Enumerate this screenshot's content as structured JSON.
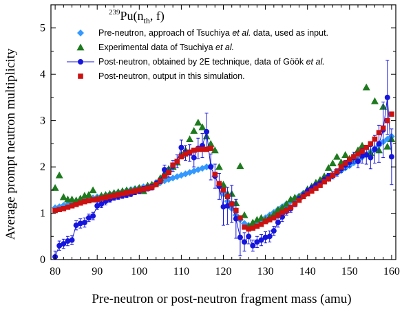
{
  "chart_data": {
    "type": "scatter",
    "title": "²³⁹Pu(n_th, f)",
    "title_parts": {
      "sup": "239",
      "main": "Pu(n",
      "sub": "th",
      "tail": ", f)"
    },
    "xlabel": "Pre-neutron or post-neutron fragment mass (amu)",
    "ylabel": "Average prompt neutron multiplicity",
    "xlim": [
      79,
      161
    ],
    "ylim": [
      0,
      5.5
    ],
    "xticks": [
      80,
      90,
      100,
      110,
      120,
      130,
      140,
      150,
      160
    ],
    "yticks": [
      0,
      1,
      2,
      3,
      4,
      5
    ],
    "grid": false,
    "legend_position": "top-right",
    "series": [
      {
        "name": "Pre-neutron, approach of Tsuchiya et al. data, used as input.",
        "legend_label_parts": [
          "Pre-neutron, approach of Tsuchiya ",
          "et al.",
          " data, used as input."
        ],
        "marker": "diamond",
        "color": "#3399ff",
        "x": [
          80,
          81,
          82,
          83,
          84,
          85,
          86,
          87,
          88,
          89,
          90,
          91,
          92,
          93,
          94,
          95,
          96,
          97,
          98,
          99,
          100,
          101,
          102,
          103,
          104,
          105,
          106,
          107,
          108,
          109,
          110,
          111,
          112,
          113,
          114,
          115,
          116,
          117,
          118,
          119,
          120,
          121,
          122,
          123,
          124,
          125,
          126,
          127,
          128,
          129,
          130,
          131,
          132,
          133,
          134,
          135,
          136,
          137,
          138,
          139,
          140,
          141,
          142,
          143,
          144,
          145,
          146,
          147,
          148,
          149,
          150,
          151,
          152,
          153,
          154,
          155,
          156,
          157,
          158,
          159,
          160
        ],
        "y": [
          1.12,
          1.14,
          1.17,
          1.19,
          1.22,
          1.24,
          1.27,
          1.29,
          1.31,
          1.33,
          1.35,
          1.37,
          1.39,
          1.41,
          1.43,
          1.45,
          1.47,
          1.49,
          1.51,
          1.53,
          1.55,
          1.57,
          1.59,
          1.61,
          1.63,
          1.66,
          1.7,
          1.73,
          1.76,
          1.79,
          1.82,
          1.85,
          1.88,
          1.91,
          1.94,
          1.97,
          2.0,
          2.02,
          1.8,
          1.6,
          1.42,
          1.26,
          1.1,
          0.96,
          0.86,
          0.78,
          0.74,
          0.74,
          0.78,
          0.84,
          0.9,
          0.96,
          1.02,
          1.08,
          1.14,
          1.2,
          1.26,
          1.32,
          1.37,
          1.43,
          1.48,
          1.53,
          1.59,
          1.64,
          1.7,
          1.75,
          1.81,
          1.86,
          1.92,
          1.98,
          2.03,
          2.09,
          2.15,
          2.21,
          2.27,
          2.33,
          2.4,
          2.47,
          2.54,
          2.6,
          2.66
        ]
      },
      {
        "name": "Experimental data of Tsuchiya et al.",
        "legend_label_parts": [
          "Experimental data of Tsuchiya ",
          "et al.",
          ""
        ],
        "marker": "triangle",
        "color": "#1e7a1e",
        "x": [
          80,
          81,
          82,
          83,
          84,
          85,
          86,
          87,
          88,
          89,
          90,
          91,
          92,
          93,
          94,
          95,
          96,
          97,
          98,
          99,
          100,
          101,
          102,
          103,
          104,
          105,
          106,
          107,
          108,
          109,
          110,
          111,
          112,
          113,
          114,
          115,
          116,
          117,
          118,
          119,
          120,
          121,
          122,
          123,
          124,
          125,
          126,
          127,
          128,
          129,
          130,
          131,
          132,
          133,
          134,
          135,
          136,
          137,
          138,
          139,
          140,
          141,
          142,
          143,
          144,
          145,
          146,
          147,
          148,
          149,
          150,
          151,
          152,
          153,
          154,
          155,
          156,
          157,
          158,
          159,
          160
        ],
        "y": [
          1.55,
          1.82,
          1.35,
          1.3,
          1.3,
          1.28,
          1.32,
          1.38,
          1.4,
          1.5,
          1.32,
          1.38,
          1.4,
          1.42,
          1.44,
          1.46,
          1.48,
          1.5,
          1.5,
          1.52,
          1.55,
          1.48,
          1.6,
          1.62,
          1.66,
          1.76,
          1.86,
          1.96,
          2.0,
          2.1,
          2.26,
          2.36,
          2.6,
          2.78,
          2.96,
          2.86,
          2.66,
          2.5,
          2.36,
          2.0,
          1.62,
          1.42,
          1.42,
          1.22,
          2.02,
          0.96,
          0.72,
          0.8,
          0.86,
          0.9,
          0.86,
          0.92,
          0.98,
          1.08,
          1.12,
          1.2,
          1.3,
          1.34,
          1.36,
          1.42,
          1.52,
          1.58,
          1.66,
          1.72,
          1.8,
          1.98,
          2.08,
          2.22,
          2.1,
          2.26,
          2.18,
          2.24,
          2.36,
          2.46,
          3.72,
          2.3,
          3.42,
          2.36,
          3.3,
          2.44,
          2.6
        ]
      },
      {
        "name": "Post-neutron, obtained by 2E technique, data of Göök et al.",
        "legend_label_parts": [
          "Post-neutron, obtained by 2E technique, data of Göök ",
          "et al.",
          ""
        ],
        "marker": "circle",
        "color": "#1515dd",
        "x": [
          80,
          81,
          82,
          83,
          84,
          85,
          86,
          87,
          88,
          89,
          90,
          91,
          92,
          93,
          94,
          95,
          96,
          97,
          98,
          99,
          100,
          101,
          102,
          103,
          104,
          105,
          106,
          107,
          108,
          109,
          110,
          111,
          112,
          113,
          114,
          115,
          116,
          117,
          118,
          119,
          120,
          121,
          122,
          123,
          124,
          125,
          126,
          127,
          128,
          129,
          130,
          131,
          132,
          133,
          134,
          135,
          136,
          137,
          138,
          139,
          140,
          141,
          142,
          143,
          144,
          145,
          146,
          147,
          148,
          149,
          150,
          151,
          152,
          153,
          154,
          155,
          156,
          157,
          158,
          159,
          160
        ],
        "y": [
          0.06,
          0.3,
          0.34,
          0.4,
          0.42,
          0.74,
          0.78,
          0.8,
          0.9,
          0.94,
          1.16,
          1.2,
          1.26,
          1.3,
          1.34,
          1.36,
          1.38,
          1.4,
          1.42,
          1.46,
          1.48,
          1.52,
          1.54,
          1.56,
          1.64,
          1.7,
          1.94,
          1.88,
          2.02,
          2.12,
          2.42,
          2.3,
          2.3,
          2.2,
          2.4,
          2.46,
          2.76,
          2.0,
          1.8,
          1.58,
          1.14,
          1.16,
          1.2,
          0.88,
          0.48,
          0.38,
          0.5,
          0.3,
          0.38,
          0.42,
          0.48,
          0.5,
          0.62,
          0.8,
          0.92,
          1.04,
          1.1,
          1.2,
          1.3,
          1.38,
          1.48,
          1.54,
          1.6,
          1.64,
          1.72,
          1.8,
          1.82,
          1.88,
          1.96,
          2.04,
          2.1,
          2.2,
          2.12,
          2.24,
          2.26,
          2.2,
          2.38,
          2.5,
          2.8,
          3.5,
          2.22
        ],
        "yerr": [
          0.12,
          0.1,
          0.1,
          0.1,
          0.1,
          0.1,
          0.1,
          0.1,
          0.08,
          0.08,
          0.08,
          0.08,
          0.08,
          0.06,
          0.06,
          0.06,
          0.06,
          0.06,
          0.06,
          0.06,
          0.06,
          0.06,
          0.06,
          0.06,
          0.06,
          0.06,
          0.1,
          0.1,
          0.12,
          0.14,
          0.16,
          0.16,
          0.18,
          0.2,
          0.22,
          0.26,
          0.4,
          0.28,
          0.26,
          0.28,
          0.4,
          0.4,
          0.4,
          0.42,
          0.4,
          0.2,
          0.16,
          0.12,
          0.12,
          0.12,
          0.12,
          0.12,
          0.1,
          0.1,
          0.1,
          0.08,
          0.08,
          0.06,
          0.06,
          0.06,
          0.06,
          0.06,
          0.06,
          0.06,
          0.06,
          0.06,
          0.08,
          0.08,
          0.08,
          0.1,
          0.1,
          0.12,
          0.14,
          0.16,
          0.2,
          0.24,
          0.3,
          0.4,
          0.6,
          0.8,
          0.6
        ]
      },
      {
        "name": "Post-neutron, output in this simulation.",
        "legend_label_parts": [
          "Post-neutron, output in this simulation.",
          "",
          ""
        ],
        "marker": "square",
        "color": "#cc1111",
        "x": [
          80,
          81,
          82,
          83,
          84,
          85,
          86,
          87,
          88,
          89,
          90,
          91,
          92,
          93,
          94,
          95,
          96,
          97,
          98,
          99,
          100,
          101,
          102,
          103,
          104,
          105,
          106,
          107,
          108,
          109,
          110,
          111,
          112,
          113,
          114,
          115,
          116,
          117,
          118,
          119,
          120,
          121,
          122,
          123,
          124,
          125,
          126,
          127,
          128,
          129,
          130,
          131,
          132,
          133,
          134,
          135,
          136,
          137,
          138,
          139,
          140,
          141,
          142,
          143,
          144,
          145,
          146,
          147,
          148,
          149,
          150,
          151,
          152,
          153,
          154,
          155,
          156,
          157,
          158,
          159,
          160
        ],
        "y": [
          1.06,
          1.08,
          1.1,
          1.13,
          1.16,
          1.19,
          1.22,
          1.25,
          1.27,
          1.29,
          1.3,
          1.32,
          1.34,
          1.36,
          1.38,
          1.4,
          1.42,
          1.44,
          1.46,
          1.48,
          1.5,
          1.52,
          1.54,
          1.56,
          1.62,
          1.7,
          1.8,
          1.88,
          2.04,
          2.12,
          2.22,
          2.28,
          2.32,
          2.36,
          2.38,
          2.38,
          2.38,
          2.4,
          1.84,
          1.64,
          1.5,
          1.36,
          1.2,
          1.06,
          0.9,
          0.7,
          0.66,
          0.68,
          0.72,
          0.76,
          0.82,
          0.86,
          0.9,
          0.96,
          1.02,
          1.06,
          1.12,
          1.2,
          1.28,
          1.36,
          1.42,
          1.48,
          1.54,
          1.6,
          1.68,
          1.74,
          1.82,
          1.9,
          2.0,
          2.08,
          2.16,
          2.22,
          2.28,
          2.34,
          2.42,
          2.5,
          2.6,
          2.74,
          2.84,
          3.0,
          3.14
        ]
      }
    ]
  }
}
